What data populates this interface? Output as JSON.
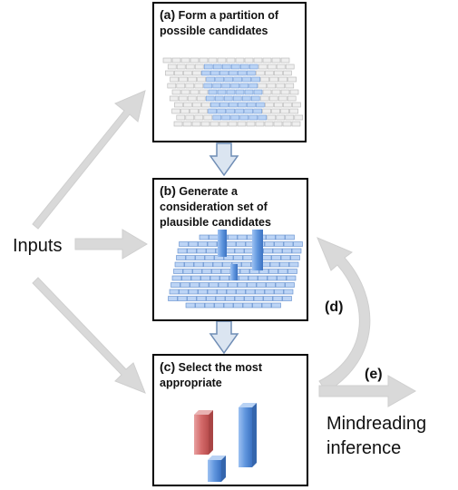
{
  "diagram": {
    "inputs_label": "Inputs",
    "boxes": [
      {
        "label": "(a)",
        "text_line1": "Form a partition of",
        "text_line2": "possible candidates"
      },
      {
        "label": "(b)",
        "text_line1": "Generate a",
        "text_line2": "consideration set of",
        "text_line3": "plausible candidates"
      },
      {
        "label": "(c)",
        "text_line1": "Select the most",
        "text_line2": "appropriate"
      }
    ],
    "arrow_labels": {
      "d": "(d)",
      "e": "(e)"
    },
    "output_line1": "Mindreading",
    "output_line2": "inference"
  },
  "colors": {
    "arrow_gray": "#d9d9d9",
    "arrow_gray_stroke": "#c8c8c8",
    "down_arrow_fill": "#dbe5f1",
    "down_arrow_stroke": "#6f8db5",
    "block_blue": "#a9c8f0",
    "block_blue_dark": "#4a7fc8",
    "block_gray": "#d9d9d9",
    "bar_red": "#d98080"
  }
}
